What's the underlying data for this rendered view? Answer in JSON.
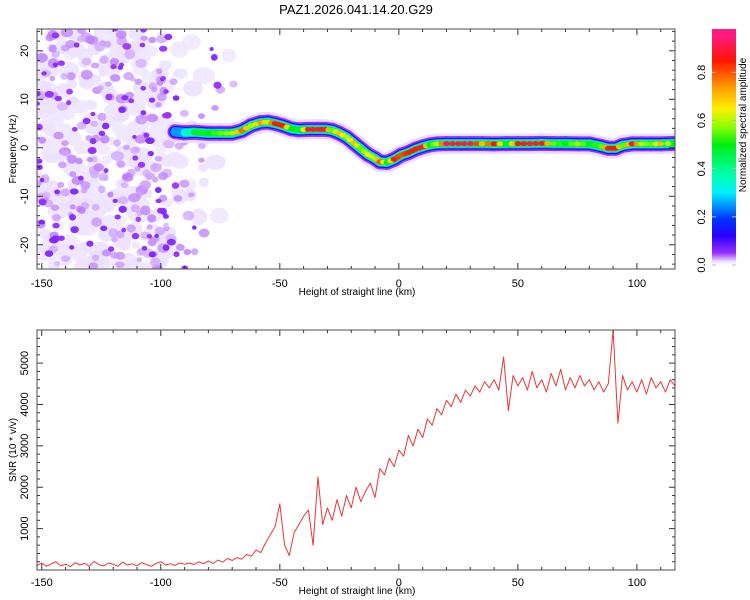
{
  "title": "PAZ1.2026.041.14.20.G29",
  "chart_data": [
    {
      "id": "spectrogram",
      "type": "heatmap",
      "title": "",
      "xlabel": "Height of straight line (km)",
      "ylabel": "Frequency (Hz)",
      "xlim": [
        -152,
        116
      ],
      "ylim": [
        -25,
        24.5
      ],
      "x_ticks": [
        -150,
        -100,
        -50,
        0,
        50,
        100
      ],
      "x_tick_labels": [
        "-150",
        "-100",
        "-50",
        "0",
        "50",
        "100"
      ],
      "x_minor_step": 10,
      "y_ticks": [
        -20,
        -10,
        0,
        10,
        20
      ],
      "y_tick_labels": [
        "-20",
        "-10",
        "0",
        "10",
        "20"
      ],
      "y_minor_step": 2,
      "grid": false,
      "colorbar": {
        "label": "Normalized spectral amplitude",
        "range": [
          0,
          0.98
        ],
        "ticks": [
          0,
          0.2,
          0.4,
          0.6,
          0.8
        ],
        "tick_labels": [
          "0.0",
          "0.2",
          "0.4",
          "0.6",
          "0.8"
        ],
        "position": "right"
      },
      "colormap": [
        [
          0.0,
          "#ffffff"
        ],
        [
          0.015,
          "#e9ddff"
        ],
        [
          0.05,
          "#9b30ff"
        ],
        [
          0.12,
          "#2a00ff"
        ],
        [
          0.19,
          "#0033ff"
        ],
        [
          0.3,
          "#00f0ff"
        ],
        [
          0.37,
          "#00ffb0"
        ],
        [
          0.5,
          "#00ee10"
        ],
        [
          0.58,
          "#99ff00"
        ],
        [
          0.65,
          "#ffee00"
        ],
        [
          0.74,
          "#ff9900"
        ],
        [
          0.85,
          "#ff1500"
        ],
        [
          0.95,
          "#ff1a80"
        ]
      ],
      "noise": {
        "description": "broadband noise below the signal onset",
        "x_range": [
          -152,
          -68
        ],
        "dense_until": -97,
        "y_range": [
          -25,
          24.5
        ],
        "amplitude_range": [
          0.012,
          0.06
        ]
      },
      "ridge": {
        "description": "dominant frequency track [height_km, frequency_hz, normalized_amplitude]",
        "points": [
          [
            -94,
            3.3,
            0.12
          ],
          [
            -90,
            3.1,
            0.3
          ],
          [
            -86,
            3.2,
            0.42
          ],
          [
            -80,
            3.0,
            0.5
          ],
          [
            -75,
            3.0,
            0.55
          ],
          [
            -70,
            3.0,
            0.6
          ],
          [
            -66,
            3.5,
            0.78
          ],
          [
            -62,
            4.6,
            0.6
          ],
          [
            -58,
            5.2,
            0.75
          ],
          [
            -55,
            5.3,
            0.62
          ],
          [
            -52,
            5.0,
            0.88
          ],
          [
            -49,
            4.6,
            0.85
          ],
          [
            -45,
            3.9,
            0.5
          ],
          [
            -42,
            3.7,
            0.45
          ],
          [
            -38,
            3.8,
            0.88
          ],
          [
            -34,
            3.8,
            0.9
          ],
          [
            -31,
            3.8,
            0.88
          ],
          [
            -28,
            3.6,
            0.55
          ],
          [
            -25,
            3.0,
            0.7
          ],
          [
            -22,
            2.2,
            0.6
          ],
          [
            -19,
            1.0,
            0.7
          ],
          [
            -16,
            -0.2,
            0.55
          ],
          [
            -13,
            -1.4,
            0.65
          ],
          [
            -10,
            -2.2,
            0.6
          ],
          [
            -8,
            -2.9,
            0.8
          ],
          [
            -5,
            -3.0,
            0.5
          ],
          [
            -2,
            -2.4,
            0.85
          ],
          [
            1,
            -1.5,
            0.8
          ],
          [
            4,
            -1.0,
            0.85
          ],
          [
            7,
            -0.3,
            0.85
          ],
          [
            10,
            0.2,
            0.9
          ],
          [
            13,
            0.6,
            0.5
          ],
          [
            16,
            0.8,
            0.6
          ],
          [
            20,
            0.85,
            0.92
          ],
          [
            25,
            0.85,
            0.9
          ],
          [
            30,
            0.85,
            0.92
          ],
          [
            35,
            0.85,
            0.7
          ],
          [
            40,
            0.8,
            0.85
          ],
          [
            45,
            0.85,
            0.5
          ],
          [
            50,
            0.85,
            0.85
          ],
          [
            55,
            0.85,
            0.9
          ],
          [
            60,
            0.9,
            0.88
          ],
          [
            65,
            0.85,
            0.55
          ],
          [
            70,
            0.85,
            0.5
          ],
          [
            75,
            0.8,
            0.6
          ],
          [
            80,
            0.8,
            0.5
          ],
          [
            85,
            0.3,
            0.55
          ],
          [
            88,
            -0.1,
            0.88
          ],
          [
            91,
            -0.1,
            0.85
          ],
          [
            94,
            0.5,
            0.55
          ],
          [
            98,
            0.8,
            0.88
          ],
          [
            102,
            0.8,
            0.6
          ],
          [
            106,
            0.8,
            0.55
          ],
          [
            110,
            0.8,
            0.7
          ],
          [
            116,
            0.9,
            0.5
          ]
        ]
      }
    },
    {
      "id": "snr",
      "type": "line",
      "title": "",
      "xlabel": "Height of straight line (km)",
      "ylabel": "SNR (10 * v/v)",
      "xlim": [
        -152,
        116
      ],
      "ylim": [
        0,
        5800
      ],
      "x_ticks": [
        -150,
        -100,
        -50,
        0,
        50,
        100
      ],
      "x_tick_labels": [
        "-150",
        "-100",
        "-50",
        "0",
        "50",
        "100"
      ],
      "x_minor_step": 10,
      "y_ticks": [
        1000,
        2000,
        3000,
        4000,
        5000
      ],
      "y_tick_labels": [
        "1000",
        "2000",
        "3000",
        "4000",
        "5000"
      ],
      "y_minor_step": 200,
      "grid": false,
      "series": [
        {
          "name": "SNR",
          "color": "#ec3434",
          "x": [
            -152,
            -150,
            -148,
            -146,
            -144,
            -142,
            -140,
            -138,
            -136,
            -134,
            -132,
            -130,
            -128,
            -126,
            -124,
            -122,
            -120,
            -118,
            -116,
            -114,
            -112,
            -110,
            -108,
            -106,
            -104,
            -102,
            -100,
            -98,
            -96,
            -94,
            -92,
            -90,
            -88,
            -86,
            -84,
            -82,
            -80,
            -78,
            -76,
            -74,
            -72,
            -70,
            -68,
            -66,
            -64,
            -62,
            -60,
            -58,
            -56,
            -54,
            -52,
            -50,
            -48,
            -46,
            -44,
            -42,
            -40,
            -38,
            -36,
            -34,
            -32,
            -30,
            -28,
            -26,
            -24,
            -22,
            -20,
            -18,
            -16,
            -14,
            -12,
            -10,
            -8,
            -6,
            -4,
            -2,
            0,
            2,
            4,
            6,
            8,
            10,
            12,
            14,
            16,
            18,
            20,
            22,
            24,
            26,
            28,
            30,
            32,
            34,
            36,
            38,
            40,
            42,
            44,
            46,
            48,
            50,
            52,
            54,
            56,
            58,
            60,
            62,
            64,
            66,
            68,
            70,
            72,
            74,
            76,
            78,
            80,
            82,
            84,
            86,
            88,
            90,
            92,
            94,
            96,
            98,
            100,
            102,
            104,
            106,
            108,
            110,
            112,
            114,
            116
          ],
          "values": [
            110,
            170,
            90,
            150,
            200,
            100,
            140,
            80,
            180,
            120,
            160,
            90,
            210,
            130,
            100,
            170,
            140,
            90,
            190,
            120,
            150,
            100,
            180,
            130,
            90,
            160,
            200,
            120,
            150,
            110,
            170,
            140,
            170,
            130,
            200,
            150,
            220,
            160,
            240,
            190,
            280,
            230,
            300,
            260,
            380,
            330,
            480,
            420,
            650,
            850,
            1050,
            1600,
            600,
            350,
            900,
            1100,
            1300,
            1450,
            600,
            2250,
            1100,
            1500,
            1200,
            1700,
            1300,
            1800,
            1500,
            2000,
            1650,
            1900,
            2100,
            1750,
            2450,
            2300,
            2700,
            2500,
            2900,
            2750,
            3250,
            3000,
            3400,
            3200,
            3650,
            3500,
            3900,
            3750,
            4100,
            3950,
            4250,
            4050,
            4350,
            4200,
            4450,
            4300,
            4550,
            4400,
            4600,
            4350,
            5150,
            3850,
            4700,
            4450,
            4650,
            4350,
            4800,
            4400,
            4600,
            4300,
            4750,
            4450,
            4850,
            4350,
            4650,
            4400,
            4700,
            4450,
            4600,
            4350,
            4550,
            4300,
            4500,
            5800,
            3550,
            4700,
            4350,
            4550,
            4300,
            4600,
            4250,
            4650,
            4400,
            4550,
            4300,
            4600,
            4450
          ]
        }
      ]
    }
  ]
}
